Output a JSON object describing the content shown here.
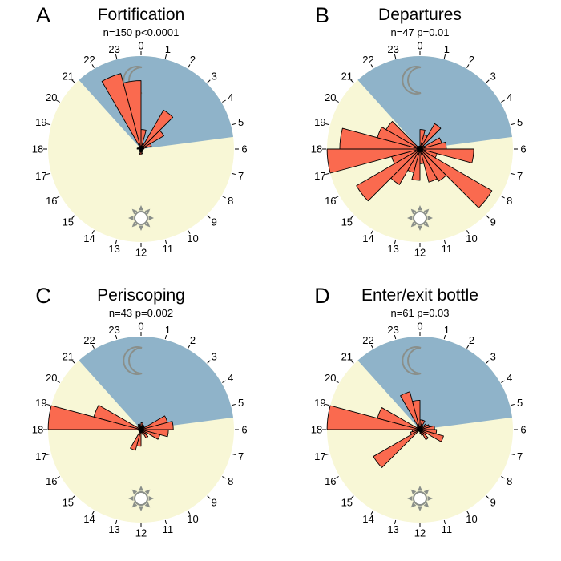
{
  "colors": {
    "night": "#8fb3c9",
    "day": "#f8f7d6",
    "bars": "#fa6a4f",
    "bar_edge": "#000000",
    "icon": "#8a8f8a",
    "tick": "#000000"
  },
  "icons": {
    "night": "moon-icon",
    "day": "sun-icon"
  },
  "chart_data": [
    {
      "type": "rose",
      "letter": "A",
      "title": "Fortification",
      "stats": "n=150 p<0.0001",
      "hour_labels": [
        "0",
        "1",
        "2",
        "3",
        "4",
        "5",
        "6",
        "7",
        "8",
        "9",
        "10",
        "11",
        "12",
        "13",
        "14",
        "15",
        "16",
        "17",
        "18",
        "19",
        "20",
        "21",
        "22",
        "23"
      ],
      "night_span_hours": [
        21.2,
        5.5
      ],
      "max_radius": 1.0,
      "values": [
        0.2,
        0.05,
        0.46,
        0.27,
        0.11,
        0.03,
        0.01,
        0.01,
        0.02,
        0.02,
        0.03,
        0.05,
        0.06,
        0.03,
        0.02,
        0.01,
        0.01,
        0.02,
        0.04,
        0.03,
        0.02,
        0.03,
        0.8,
        0.7
      ]
    },
    {
      "type": "rose",
      "letter": "B",
      "title": "Departures",
      "stats": "n=47 p=0.01",
      "hour_labels": [
        "0",
        "1",
        "2",
        "3",
        "4",
        "5",
        "6",
        "7",
        "8",
        "9",
        "10",
        "11",
        "12",
        "13",
        "14",
        "15",
        "16",
        "17",
        "18",
        "19",
        "20",
        "21",
        "22",
        "23"
      ],
      "night_span_hours": [
        21.2,
        5.5
      ],
      "max_radius": 1.0,
      "values": [
        0.2,
        0.15,
        0.3,
        0.05,
        0.23,
        0.27,
        0.55,
        0.18,
        0.85,
        0.38,
        0.35,
        0.15,
        0.32,
        0.25,
        0.42,
        0.75,
        0.3,
        0.95,
        0.82,
        0.45,
        0.4,
        0.02,
        0.03,
        0.03
      ]
    },
    {
      "type": "rose",
      "letter": "C",
      "title": "Periscoping",
      "stats": "n=43 p=0.002",
      "hour_labels": [
        "0",
        "1",
        "2",
        "3",
        "4",
        "5",
        "6",
        "7",
        "8",
        "9",
        "10",
        "11",
        "12",
        "13",
        "14",
        "15",
        "16",
        "17",
        "18",
        "19",
        "20",
        "21",
        "22",
        "23"
      ],
      "night_span_hours": [
        21.2,
        5.5
      ],
      "max_radius": 1.0,
      "values": [
        0.07,
        0.04,
        0.05,
        0.04,
        0.28,
        0.33,
        0.28,
        0.2,
        0.06,
        0.1,
        0.05,
        0.03,
        0.17,
        0.22,
        0.03,
        0.02,
        0.02,
        0.03,
        0.95,
        0.5,
        0.03,
        0.05,
        0.06,
        0.05
      ]
    },
    {
      "type": "rose",
      "letter": "D",
      "title": "Enter/exit bottle",
      "stats": "n=61 p=0.03",
      "hour_labels": [
        "0",
        "1",
        "2",
        "3",
        "4",
        "5",
        "6",
        "7",
        "8",
        "9",
        "10",
        "11",
        "12",
        "13",
        "14",
        "15",
        "16",
        "17",
        "18",
        "19",
        "20",
        "21",
        "22",
        "23"
      ],
      "night_span_hours": [
        21.2,
        5.5
      ],
      "max_radius": 1.0,
      "values": [
        0.1,
        0.1,
        0.03,
        0.08,
        0.1,
        0.15,
        0.17,
        0.25,
        0.08,
        0.12,
        0.06,
        0.04,
        0.02,
        0.02,
        0.02,
        0.55,
        0.1,
        0.08,
        0.95,
        0.45,
        0.04,
        0.02,
        0.4,
        0.3
      ]
    }
  ]
}
